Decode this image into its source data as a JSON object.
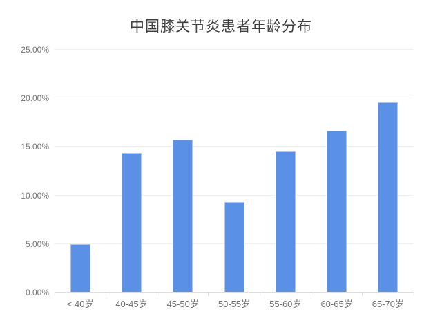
{
  "page": {
    "background_color": "#ffffff"
  },
  "chart_data": {
    "type": "bar",
    "title": "中国膝关节炎患者年龄分布",
    "categories": [
      "< 40岁",
      "40-45岁",
      "45-50岁",
      "50-55岁",
      "55-60岁",
      "60-65岁",
      "65-70岁"
    ],
    "values": [
      5.0,
      14.4,
      15.75,
      9.3,
      14.55,
      16.7,
      19.6
    ],
    "value_unit": "%",
    "xlabel": "",
    "ylabel": "",
    "ylim": [
      0,
      25
    ],
    "y_tick_step": 5,
    "y_tick_labels": [
      "0.00%",
      "5.00%",
      "10.00%",
      "15.00%",
      "20.00%",
      "25.00%"
    ],
    "grid": "horizontal",
    "legend": "none",
    "colors": {
      "bar_fill": "#5a90e6",
      "bar_border": "#aac6f1",
      "gridline": "#f0f0f0",
      "axis_baseline": "#dfdfdf",
      "title_text": "#404040",
      "y_tick_text": "#757575",
      "x_tick_text": "#6e6e6e"
    }
  }
}
